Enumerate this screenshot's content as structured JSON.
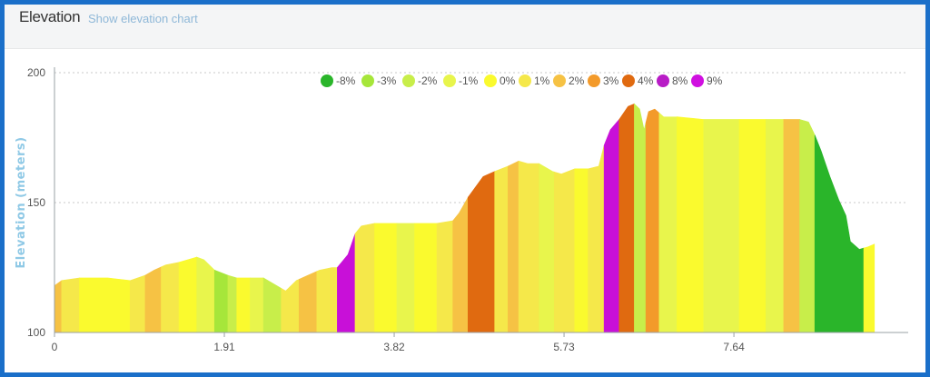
{
  "header": {
    "title": "Elevation",
    "link_label": "Show elevation chart"
  },
  "chart_data": {
    "type": "area",
    "title": "",
    "ylabel": "Elevation (meters)",
    "xlabel": "",
    "ylim": [
      100,
      200
    ],
    "xlim": [
      0,
      9.6
    ],
    "x_ticks": [
      "0",
      "1.91",
      "3.82",
      "5.73",
      "7.64"
    ],
    "x_tick_values": [
      0,
      1.91,
      3.82,
      5.73,
      7.64
    ],
    "y_ticks": [
      "100",
      "150",
      "200"
    ],
    "y_tick_values": [
      100,
      150,
      200
    ],
    "grid": "horizontal dotted",
    "legend_position": "top-center",
    "legend": [
      {
        "label": "-8%",
        "color": "#2ab52a"
      },
      {
        "label": "-3%",
        "color": "#a6e63a"
      },
      {
        "label": "-2%",
        "color": "#c8ee4a"
      },
      {
        "label": "-1%",
        "color": "#e8f54c"
      },
      {
        "label": "0%",
        "color": "#fafa2e"
      },
      {
        "label": "1%",
        "color": "#f5e84a"
      },
      {
        "label": "2%",
        "color": "#f6c244"
      },
      {
        "label": "3%",
        "color": "#f39a2a"
      },
      {
        "label": "4%",
        "color": "#e06a10"
      },
      {
        "label": "8%",
        "color": "#b81cc6"
      },
      {
        "label": "9%",
        "color": "#d010e0"
      }
    ],
    "profile": [
      [
        0.0,
        118
      ],
      [
        0.08,
        120
      ],
      [
        0.28,
        121
      ],
      [
        0.6,
        121
      ],
      [
        0.85,
        120
      ],
      [
        1.02,
        122
      ],
      [
        1.12,
        124
      ],
      [
        1.25,
        126
      ],
      [
        1.4,
        127
      ],
      [
        1.6,
        129
      ],
      [
        1.68,
        128
      ],
      [
        1.8,
        124
      ],
      [
        1.95,
        122
      ],
      [
        2.05,
        121
      ],
      [
        2.35,
        121
      ],
      [
        2.5,
        118
      ],
      [
        2.6,
        116
      ],
      [
        2.72,
        120
      ],
      [
        2.85,
        122
      ],
      [
        2.98,
        124
      ],
      [
        3.12,
        125
      ],
      [
        3.18,
        125
      ],
      [
        3.3,
        130
      ],
      [
        3.38,
        138
      ],
      [
        3.45,
        141
      ],
      [
        3.6,
        142
      ],
      [
        3.85,
        142
      ],
      [
        4.05,
        142
      ],
      [
        4.3,
        142
      ],
      [
        4.48,
        143
      ],
      [
        4.55,
        146
      ],
      [
        4.65,
        152
      ],
      [
        4.82,
        160
      ],
      [
        4.95,
        162
      ],
      [
        5.1,
        164
      ],
      [
        5.22,
        166
      ],
      [
        5.32,
        165
      ],
      [
        5.45,
        165
      ],
      [
        5.6,
        162
      ],
      [
        5.7,
        161
      ],
      [
        5.85,
        163
      ],
      [
        6.0,
        163
      ],
      [
        6.12,
        164
      ],
      [
        6.18,
        172
      ],
      [
        6.25,
        178
      ],
      [
        6.35,
        182
      ],
      [
        6.45,
        187
      ],
      [
        6.52,
        188
      ],
      [
        6.58,
        186
      ],
      [
        6.63,
        178
      ],
      [
        6.68,
        185
      ],
      [
        6.75,
        186
      ],
      [
        6.85,
        183
      ],
      [
        7.0,
        183
      ],
      [
        7.3,
        182
      ],
      [
        7.7,
        182
      ],
      [
        8.0,
        182
      ],
      [
        8.2,
        182
      ],
      [
        8.38,
        182
      ],
      [
        8.48,
        181
      ],
      [
        8.55,
        176
      ],
      [
        8.62,
        170
      ],
      [
        8.72,
        160
      ],
      [
        8.82,
        151
      ],
      [
        8.9,
        145
      ],
      [
        8.95,
        135
      ],
      [
        9.05,
        132
      ],
      [
        9.15,
        133
      ],
      [
        9.22,
        134
      ]
    ],
    "segments": [
      [
        0.0,
        0.08,
        "#f6c244"
      ],
      [
        0.08,
        0.28,
        "#f5e84a"
      ],
      [
        0.28,
        0.85,
        "#fafa2e"
      ],
      [
        0.85,
        1.02,
        "#f5e84a"
      ],
      [
        1.02,
        1.2,
        "#f6c244"
      ],
      [
        1.2,
        1.4,
        "#f5e84a"
      ],
      [
        1.4,
        1.6,
        "#fafa2e"
      ],
      [
        1.6,
        1.8,
        "#e8f54c"
      ],
      [
        1.8,
        1.95,
        "#a6e63a"
      ],
      [
        1.95,
        2.05,
        "#c8ee4a"
      ],
      [
        2.05,
        2.2,
        "#fafa2e"
      ],
      [
        2.2,
        2.35,
        "#e8f54c"
      ],
      [
        2.35,
        2.55,
        "#c8ee4a"
      ],
      [
        2.55,
        2.75,
        "#f5e84a"
      ],
      [
        2.75,
        2.95,
        "#f6c244"
      ],
      [
        2.95,
        3.18,
        "#f5e84a"
      ],
      [
        3.18,
        3.38,
        "#c810d8"
      ],
      [
        3.38,
        3.6,
        "#f5e84a"
      ],
      [
        3.6,
        3.85,
        "#fafa2e"
      ],
      [
        3.85,
        4.05,
        "#e8f54c"
      ],
      [
        4.05,
        4.3,
        "#fafa2e"
      ],
      [
        4.3,
        4.48,
        "#f5e84a"
      ],
      [
        4.48,
        4.65,
        "#f6c244"
      ],
      [
        4.65,
        4.95,
        "#e06a10"
      ],
      [
        4.95,
        5.1,
        "#f5e84a"
      ],
      [
        5.1,
        5.22,
        "#f6c244"
      ],
      [
        5.22,
        5.45,
        "#f5e84a"
      ],
      [
        5.45,
        5.62,
        "#e8f54c"
      ],
      [
        5.62,
        5.85,
        "#f5e84a"
      ],
      [
        5.85,
        6.0,
        "#fafa2e"
      ],
      [
        6.0,
        6.18,
        "#f5e84a"
      ],
      [
        6.18,
        6.35,
        "#c810d8"
      ],
      [
        6.35,
        6.52,
        "#e06a10"
      ],
      [
        6.52,
        6.65,
        "#c8ee4a"
      ],
      [
        6.65,
        6.8,
        "#f39a2a"
      ],
      [
        6.8,
        7.0,
        "#e8f54c"
      ],
      [
        7.0,
        7.3,
        "#fafa2e"
      ],
      [
        7.3,
        7.7,
        "#e8f54c"
      ],
      [
        7.7,
        8.0,
        "#fafa2e"
      ],
      [
        8.0,
        8.2,
        "#e8f54c"
      ],
      [
        8.2,
        8.38,
        "#f6c244"
      ],
      [
        8.38,
        8.55,
        "#c8ee4a"
      ],
      [
        8.55,
        9.1,
        "#2ab52a"
      ],
      [
        9.1,
        9.22,
        "#fafa2e"
      ]
    ]
  }
}
